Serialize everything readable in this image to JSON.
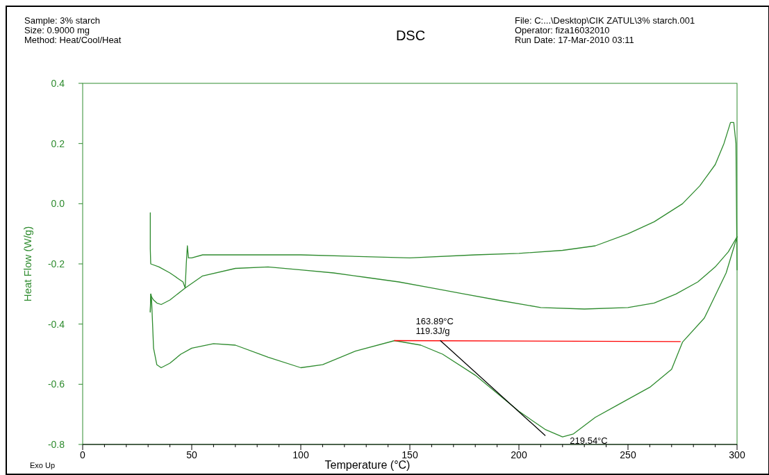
{
  "chart_data": {
    "type": "line",
    "title": "DSC",
    "xlabel": "Temperature (°C)",
    "ylabel": "Heat Flow (W/g)",
    "xlim": [
      0,
      300
    ],
    "ylim": [
      -0.8,
      0.4
    ],
    "xticks": [
      0,
      {
        "value": 10,
        "label": null
      },
      {
        "value": 20,
        "label": null
      },
      {
        "value": 30,
        "label": null
      },
      {
        "value": 40,
        "label": null
      },
      50,
      {
        "value": 60,
        "label": null
      },
      {
        "value": 70,
        "label": null
      },
      {
        "value": 80,
        "label": null
      },
      {
        "value": 90,
        "label": null
      },
      100,
      {
        "value": 110,
        "label": null
      },
      {
        "value": 120,
        "label": null
      },
      {
        "value": 130,
        "label": null
      },
      {
        "value": 140,
        "label": null
      },
      150,
      {
        "value": 160,
        "label": null
      },
      {
        "value": 170,
        "label": null
      },
      {
        "value": 180,
        "label": null
      },
      {
        "value": 190,
        "label": null
      },
      200,
      {
        "value": 210,
        "label": null
      },
      {
        "value": 220,
        "label": null
      },
      {
        "value": 230,
        "label": null
      },
      {
        "value": 240,
        "label": null
      },
      250,
      {
        "value": 260,
        "label": null
      },
      {
        "value": 270,
        "label": null
      },
      {
        "value": 280,
        "label": null
      },
      {
        "value": 290,
        "label": null
      },
      300
    ],
    "yticks": [
      0.4,
      0.2,
      {
        "value": 0,
        "label": "0.0"
      },
      -0.2,
      -0.4,
      -0.6,
      -0.8
    ],
    "grid": false,
    "line_style": "solid",
    "series": [
      {
        "color": "#2e8b2e",
        "x": [
          31,
          31,
          31.2,
          35,
          40,
          42,
          44,
          46,
          47,
          47.5,
          48,
          48.5,
          50,
          55,
          75,
          100,
          150,
          180,
          200,
          220,
          235,
          250,
          262,
          275,
          283,
          290,
          294,
          297,
          298.5,
          299.5,
          300
        ],
        "values": [
          -0.03,
          -0.15,
          -0.2,
          -0.21,
          -0.23,
          -0.24,
          -0.25,
          -0.26,
          -0.28,
          -0.2,
          -0.14,
          -0.18,
          -0.18,
          -0.17,
          -0.17,
          -0.17,
          -0.18,
          -0.17,
          -0.165,
          -0.155,
          -0.14,
          -0.1,
          -0.06,
          0.0,
          0.06,
          0.13,
          0.2,
          0.27,
          0.27,
          0.2,
          -0.22
        ]
      },
      {
        "color": "#2e8b2e",
        "x": [
          31,
          31.2,
          31.6,
          32.5,
          34,
          36,
          40,
          47,
          55,
          70,
          85,
          100,
          115,
          130,
          145,
          160,
          175,
          190,
          210,
          230,
          250,
          262,
          272,
          282,
          290,
          296,
          300
        ],
        "values": [
          -0.36,
          -0.3,
          -0.31,
          -0.32,
          -0.33,
          -0.335,
          -0.32,
          -0.28,
          -0.24,
          -0.215,
          -0.21,
          -0.22,
          -0.23,
          -0.245,
          -0.26,
          -0.28,
          -0.3,
          -0.32,
          -0.345,
          -0.35,
          -0.345,
          -0.33,
          -0.3,
          -0.26,
          -0.21,
          -0.16,
          -0.11
        ]
      },
      {
        "color": "#2e8b2e",
        "x": [
          31,
          31.3,
          31.6,
          32.5,
          34,
          36,
          40,
          45,
          50,
          60,
          70,
          85,
          100,
          110,
          125,
          143,
          155,
          165,
          180,
          200,
          212,
          220,
          225,
          235,
          245,
          260,
          270,
          275,
          285,
          295,
          300
        ],
        "values": [
          -0.36,
          -0.3,
          -0.32,
          -0.48,
          -0.535,
          -0.545,
          -0.53,
          -0.5,
          -0.48,
          -0.465,
          -0.47,
          -0.51,
          -0.545,
          -0.535,
          -0.49,
          -0.455,
          -0.47,
          -0.5,
          -0.57,
          -0.69,
          -0.75,
          -0.775,
          -0.765,
          -0.71,
          -0.67,
          -0.61,
          -0.55,
          -0.46,
          -0.38,
          -0.23,
          -0.11
        ]
      },
      {
        "color": "#ff0000",
        "x": [
          143,
          274
        ],
        "values": [
          -0.455,
          -0.458
        ]
      },
      {
        "color": "#000000",
        "x": [
          164,
          212
        ],
        "values": [
          -0.455,
          -0.77
        ]
      }
    ],
    "annotations": [
      "Sample: 3% starch",
      "Size:  0.9000 mg",
      "Method: Heat/Cool/Heat",
      "File: C:...\\Desktop\\CIK ZATUL\\3% starch.001",
      "Operator: fiza16032010",
      "Run Date: 17-Mar-2010 03:11",
      {
        "text": "163.89°C\n119.3J/g",
        "x": 163.89,
        "y": -0.455
      },
      {
        "text": "219.54°C",
        "x": 219.54,
        "y": -0.775
      },
      "Exo Up"
    ]
  }
}
